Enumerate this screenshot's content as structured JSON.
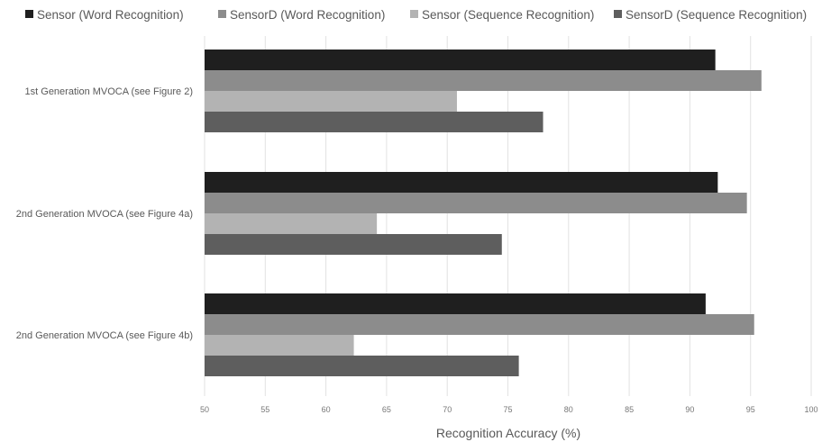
{
  "chart_data": {
    "type": "bar",
    "orientation": "horizontal",
    "categories": [
      "1st Generation MVOCA (see Figure 2)",
      "2nd Generation MVOCA (see Figure 4a)",
      "2nd Generation MVOCA (see Figure 4b)"
    ],
    "series": [
      {
        "name": "Sensor (Word Recognition)",
        "color": "#1f1f1f",
        "values": [
          92.1,
          92.3,
          91.3
        ]
      },
      {
        "name": "SensorD (Word Recognition)",
        "color": "#8c8c8c",
        "values": [
          95.9,
          94.7,
          95.3
        ]
      },
      {
        "name": "Sensor (Sequence Recognition)",
        "color": "#b3b3b3",
        "values": [
          70.8,
          64.2,
          62.3
        ]
      },
      {
        "name": "SensorD (Sequence Recognition)",
        "color": "#5e5e5e",
        "values": [
          77.9,
          74.5,
          75.9
        ]
      }
    ],
    "xlabel": "Recognition Accuracy (%)",
    "xlim": [
      50,
      100
    ],
    "xticks": [
      "50",
      "55",
      "60",
      "65",
      "70",
      "75",
      "80",
      "85",
      "90",
      "95",
      "100"
    ],
    "grid": true,
    "legend_position": "top"
  }
}
